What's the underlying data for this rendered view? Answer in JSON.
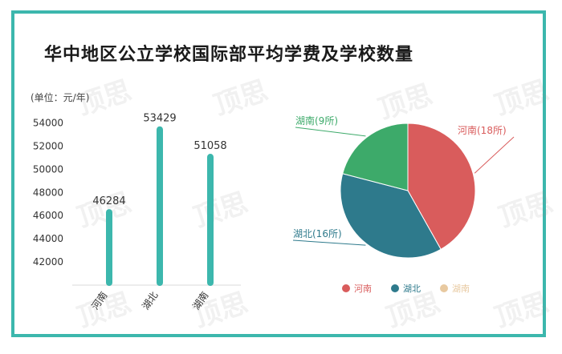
{
  "title": "华中地区公立学校国际部平均学费及学校数量",
  "unit_label": "(单位：元/年)",
  "watermark": "顶思",
  "chart_data": [
    {
      "type": "bar",
      "categories": [
        "河南",
        "湖北",
        "湖南"
      ],
      "values": [
        46284,
        53429,
        51058
      ],
      "ylim": [
        40000,
        55000
      ],
      "yticks": [
        42000,
        44000,
        46000,
        48000,
        50000,
        52000,
        54000
      ],
      "ylabel": "(单位：元/年)",
      "bar_color": "#3cb7ad"
    },
    {
      "type": "pie",
      "slices": [
        {
          "name": "河南",
          "value": 18,
          "label": "河南(18所)",
          "color": "#d95c5c"
        },
        {
          "name": "湖北",
          "value": 16,
          "label": "湖北(16所)",
          "color": "#2e7a8c"
        },
        {
          "name": "湖南",
          "value": 9,
          "label": "湖南(9所)",
          "color": "#3daa6a"
        }
      ],
      "legend": [
        "河南",
        "湖北",
        "湖南"
      ],
      "legend_colors": [
        "#d95c5c",
        "#2e7a8c",
        "#e8c9a0"
      ],
      "legend_position": "bottom"
    }
  ]
}
